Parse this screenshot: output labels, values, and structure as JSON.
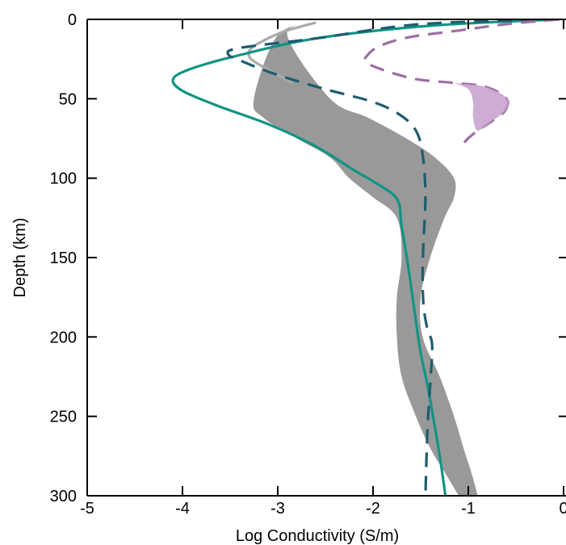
{
  "chart_data": {
    "type": "line",
    "title": "",
    "xlabel": "Log Conductivity (S/m)",
    "ylabel": "Depth (km)",
    "xlim": [
      -5,
      0
    ],
    "ylim": [
      300,
      0
    ],
    "x_ticks": [
      -5,
      -4,
      -3,
      -2,
      -1,
      0
    ],
    "x_tick_labels": [
      "-5",
      "-4",
      "-3",
      "-2",
      "-1",
      "0"
    ],
    "y_ticks": [
      0,
      50,
      100,
      150,
      200,
      250,
      300
    ],
    "y_tick_labels": [
      "0",
      "50",
      "100",
      "150",
      "200",
      "250",
      "300"
    ],
    "grid": false,
    "legend": "none",
    "colors": {
      "gray_band": "#999999",
      "gray_line": "#aaaaaa",
      "teal": "#109483",
      "navy_dashed": "#1e5c70",
      "purple_dashed": "#9b6fa2",
      "purple_fill": "#c69fcc"
    },
    "series": [
      {
        "style": "band",
        "color": "#999999",
        "lower_x": [
          -2.6,
          -3.0,
          -3.25,
          -3.15,
          -2.8,
          -2.45,
          -2.25,
          -2.0,
          -1.75,
          -1.7,
          -1.75,
          -1.75,
          -1.7,
          -1.55,
          -1.4,
          -1.25,
          -1.1
        ],
        "upper_x": [
          -2.6,
          -2.9,
          -2.45,
          -2.05,
          -1.65,
          -1.35,
          -1.15,
          -1.15,
          -1.25,
          -1.4,
          -1.5,
          -1.48,
          -1.3,
          -1.15,
          -1.05,
          -0.97,
          -0.9
        ],
        "y": [
          2,
          10,
          50,
          62,
          75,
          87,
          100,
          112,
          125,
          150,
          175,
          200,
          225,
          250,
          270,
          285,
          300
        ]
      },
      {
        "style": "solid",
        "color": "#aaaaaa",
        "x": [
          -2.6,
          -2.95,
          -3.2,
          -3.3,
          -3.28,
          -3.15,
          -3.0,
          -2.85
        ],
        "y": [
          2,
          8,
          15,
          20,
          25,
          30,
          35,
          40
        ]
      },
      {
        "style": "solid",
        "color": "#109483",
        "x": [
          -0.05,
          -1.4,
          -2.6,
          -3.5,
          -3.95,
          -4.1,
          -4.0,
          -3.65,
          -3.1,
          -2.6,
          -2.2,
          -2.0,
          -1.75,
          -1.7,
          -1.62,
          -1.55,
          -1.5,
          -1.43,
          -1.37,
          -1.3,
          -1.24
        ],
        "y": [
          0,
          4,
          12,
          24,
          32,
          38,
          45,
          54,
          66,
          80,
          95,
          102,
          113,
          130,
          160,
          190,
          210,
          230,
          250,
          275,
          300
        ]
      },
      {
        "style": "dashed",
        "color": "#1e5c70",
        "x": [
          -0.05,
          -1.5,
          -2.6,
          -3.4,
          -3.52,
          -3.35,
          -3.0,
          -2.5,
          -2.0,
          -1.72,
          -1.55,
          -1.48,
          -1.45,
          -1.47,
          -1.48,
          -1.47,
          -1.43,
          -1.38,
          -1.4,
          -1.43,
          -1.45
        ],
        "y": [
          0,
          3,
          12,
          18,
          22,
          27,
          35,
          44,
          52,
          60,
          70,
          85,
          110,
          140,
          160,
          180,
          195,
          205,
          230,
          260,
          300
        ]
      },
      {
        "style": "dashed",
        "color": "#9b6fa2",
        "x": [
          -0.05,
          -0.6,
          -1.1,
          -1.6,
          -1.9,
          -2.05,
          -2.05,
          -1.6,
          -1.15,
          -0.85,
          -0.65,
          -0.58
        ],
        "y": [
          0,
          3,
          7,
          11,
          16,
          22,
          28,
          37,
          40,
          42,
          47,
          52
        ]
      },
      {
        "style": "dashed",
        "color": "#9b6fa2",
        "x": [
          -0.58,
          -0.62,
          -0.75,
          -0.9,
          -1.02,
          -1.08
        ],
        "y": [
          52,
          58,
          64,
          70,
          76,
          82
        ]
      },
      {
        "style": "filled",
        "color": "#c69fcc",
        "x": [
          -1.15,
          -0.85,
          -0.65,
          -0.58,
          -0.62,
          -0.75,
          -0.9,
          -0.95,
          -0.95,
          -1.0,
          -1.15
        ],
        "y": [
          40,
          42,
          47,
          52,
          58,
          64,
          70,
          62,
          52,
          44,
          40
        ]
      }
    ]
  }
}
